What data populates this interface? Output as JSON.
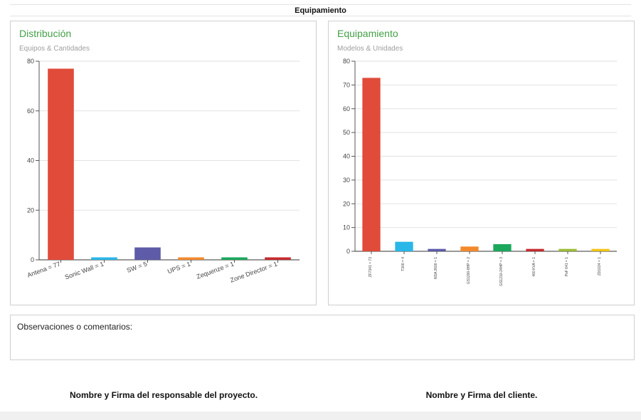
{
  "header": {
    "title": "Equipamiento"
  },
  "left_panel": {
    "title": "Distribución",
    "subtitle": "Equipos & Cantidades"
  },
  "right_panel": {
    "title": "Equipamiento",
    "subtitle": "Modelos & Unidades"
  },
  "observations": {
    "label": "Observaciones o comentarios:"
  },
  "signatures": {
    "project_lead": "Nombre y Firma del responsable del proyecto.",
    "client": "Nombre y Firma del cliente."
  },
  "chart_data": [
    {
      "type": "bar",
      "title": "Distribución",
      "subtitle": "Equipos & Cantidades",
      "categories": [
        "Antena = 77",
        "Sonic Wall = 1",
        "SW = 5",
        "UPS = 1",
        "Zequenze = 1",
        "Zone Director = 1"
      ],
      "values": [
        77,
        1,
        5,
        1,
        1,
        1
      ],
      "colors": [
        "#e04b3a",
        "#29b6e8",
        "#5e5ba8",
        "#f2892c",
        "#1aa85c",
        "#c62a2f"
      ],
      "ylim": [
        0,
        80
      ],
      "yticks": [
        0,
        20,
        40,
        60,
        80
      ],
      "grid": true
    },
    {
      "type": "bar",
      "title": "Equipamiento",
      "subtitle": "Modelos & Unidades",
      "categories": [
        "ZF7341 = 73",
        "T300 = 4",
        "NSA 2600 = 1",
        "GS1200-8HP = 2",
        "GS1210-24HP = 3",
        "460 KVA = 1",
        "PoF 641 = 1",
        "ZD1024 = 1"
      ],
      "values": [
        73,
        4,
        1,
        2,
        3,
        1,
        1,
        1
      ],
      "colors": [
        "#e04b3a",
        "#29b6e8",
        "#5e5ba8",
        "#f2892c",
        "#1aa85c",
        "#c62a2f",
        "#9ebc35",
        "#f2c417"
      ],
      "ylim": [
        0,
        80
      ],
      "yticks": [
        0,
        10,
        20,
        30,
        40,
        50,
        60,
        70,
        80
      ],
      "grid": true
    }
  ]
}
